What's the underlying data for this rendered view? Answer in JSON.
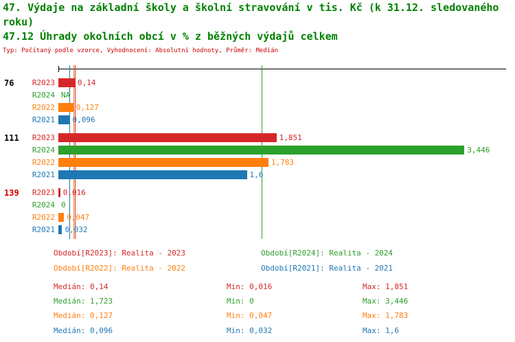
{
  "chart_data": {
    "type": "bar",
    "orientation": "horizontal",
    "title_lines": [
      "47. Výdaje na základní školy a školní stravování v tis. Kč (k 31.12. sledovaného",
      "roku)"
    ],
    "subtitle": "47.12 Úhrady okolních obcí v % z běžných výdajů celkem",
    "note": "Typ: Počítaný podle vzorce, Vyhodnocení: Absolutní hodnoty, Průměr: Medián",
    "title_color": "#008000",
    "note_color": "#cc0000",
    "axis_color": "#000000",
    "xlim": [
      0,
      3.8
    ],
    "grid": false,
    "series": [
      {
        "id": "R2023",
        "label": "Realita - 2023",
        "color": "#d62728"
      },
      {
        "id": "R2024",
        "label": "Realita - 2024",
        "color": "#2ca02c"
      },
      {
        "id": "R2022",
        "label": "Realita - 2022",
        "color": "#ff7f0e"
      },
      {
        "id": "R2021",
        "label": "Realita - 2021",
        "color": "#1f77b4"
      }
    ],
    "groups": [
      {
        "label": "76",
        "label_color": "#000000",
        "values": [
          {
            "series": "R2023",
            "value": 0.14,
            "display": "0,14"
          },
          {
            "series": "R2024",
            "value": null,
            "display": "NA"
          },
          {
            "series": "R2022",
            "value": 0.127,
            "display": "0,127"
          },
          {
            "series": "R2021",
            "value": 0.096,
            "display": "0,096"
          }
        ]
      },
      {
        "label": "111",
        "label_color": "#000000",
        "values": [
          {
            "series": "R2023",
            "value": 1.851,
            "display": "1,851"
          },
          {
            "series": "R2024",
            "value": 3.446,
            "display": "3,446"
          },
          {
            "series": "R2022",
            "value": 1.783,
            "display": "1,783"
          },
          {
            "series": "R2021",
            "value": 1.6,
            "display": "1,6"
          }
        ]
      },
      {
        "label": "139",
        "label_color": "#cc0000",
        "values": [
          {
            "series": "R2023",
            "value": 0.016,
            "display": "0,016"
          },
          {
            "series": "R2024",
            "value": 0,
            "display": "0"
          },
          {
            "series": "R2022",
            "value": 0.047,
            "display": "0,047"
          },
          {
            "series": "R2021",
            "value": 0.032,
            "display": "0,032"
          }
        ]
      }
    ],
    "median_lines": [
      {
        "series": "R2023",
        "value": 0.14
      },
      {
        "series": "R2024",
        "value": 1.723
      },
      {
        "series": "R2022",
        "value": 0.127
      },
      {
        "series": "R2021",
        "value": 0.096
      }
    ]
  },
  "legend": {
    "items": [
      {
        "series": "R2023",
        "text": "Období[R2023]: Realita - 2023"
      },
      {
        "series": "R2024",
        "text": "Období[R2024]: Realita - 2024"
      },
      {
        "series": "R2022",
        "text": "Období[R2022]: Realita - 2022"
      },
      {
        "series": "R2021",
        "text": "Období[R2021]: Realita - 2021"
      }
    ]
  },
  "stats": {
    "rows": [
      {
        "series": "R2023",
        "median": "Medián: 0,14",
        "min": "Min: 0,016",
        "max": "Max: 1,851"
      },
      {
        "series": "R2024",
        "median": "Medián: 1,723",
        "min": "Min: 0",
        "max": "Max: 3,446"
      },
      {
        "series": "R2022",
        "median": "Medián: 0,127",
        "min": "Min: 0,047",
        "max": "Max: 1,783"
      },
      {
        "series": "R2021",
        "median": "Medián: 0,096",
        "min": "Min: 0,032",
        "max": "Max: 1,6"
      }
    ]
  }
}
